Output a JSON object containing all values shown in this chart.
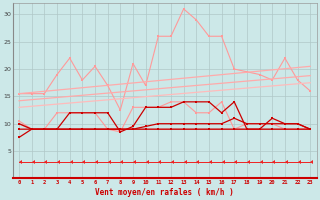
{
  "x": [
    0,
    1,
    2,
    3,
    4,
    5,
    6,
    7,
    8,
    9,
    10,
    11,
    12,
    13,
    14,
    15,
    16,
    17,
    18,
    19,
    20,
    21,
    22,
    23
  ],
  "line_salmon_top": [
    15.5,
    15.5,
    15.5,
    19,
    22,
    18,
    20.5,
    17,
    12.5,
    21,
    17,
    26,
    26,
    31,
    29,
    26,
    26,
    20,
    19.5,
    19,
    18,
    22,
    18,
    16
  ],
  "line_salmon_mid": [
    10.5,
    9,
    9,
    12,
    12,
    12,
    12,
    9,
    8.5,
    13,
    13,
    13,
    14,
    14,
    12,
    12,
    14,
    9,
    10,
    10,
    10,
    9,
    9,
    9
  ],
  "trend1_y": [
    13.0,
    17.5
  ],
  "trend2_y": [
    14.2,
    18.8
  ],
  "trend3_y": [
    15.5,
    20.5
  ],
  "line_darkred_jagged": [
    7.5,
    9,
    9,
    9,
    12,
    12,
    12,
    12,
    8.5,
    9.5,
    13,
    13,
    13,
    14,
    14,
    14,
    12,
    14,
    9,
    9,
    11,
    10,
    10,
    9
  ],
  "line_darkred_flat": [
    10,
    9,
    9,
    9,
    9,
    9,
    9,
    9,
    9,
    9,
    9,
    9,
    9,
    9,
    9,
    9,
    9,
    9,
    9,
    9,
    9,
    9,
    9,
    9
  ],
  "line_darkred_flat2": [
    9,
    9,
    9,
    9,
    9,
    9,
    9,
    9,
    9,
    9,
    9.5,
    10,
    10,
    10,
    10,
    10,
    10,
    11,
    10,
    10,
    10,
    10,
    10,
    9
  ],
  "line_arrow": [
    3,
    3,
    3,
    3,
    3,
    3,
    3,
    3,
    3,
    3,
    3,
    3,
    3,
    3,
    3,
    3,
    3,
    3,
    3,
    3,
    3,
    3,
    3,
    3
  ],
  "bg_color": "#cce8e8",
  "grid_color": "#b0c8c8",
  "color_salmon": "#ff9999",
  "color_salmon2": "#ffaaaa",
  "color_trend": "#ffbbbb",
  "color_dark_red": "#cc0000",
  "color_red": "#dd0000",
  "color_arrow": "#ee2222",
  "xlabel": "Vent moyen/en rafales ( km/h )",
  "ylim": [
    0,
    32
  ],
  "xlim_min": -0.5,
  "xlim_max": 23.5,
  "yticks": [
    5,
    10,
    15,
    20,
    25,
    30
  ],
  "xticks": [
    0,
    1,
    2,
    3,
    4,
    5,
    6,
    7,
    8,
    9,
    10,
    11,
    12,
    13,
    14,
    15,
    16,
    17,
    18,
    19,
    20,
    21,
    22,
    23
  ]
}
